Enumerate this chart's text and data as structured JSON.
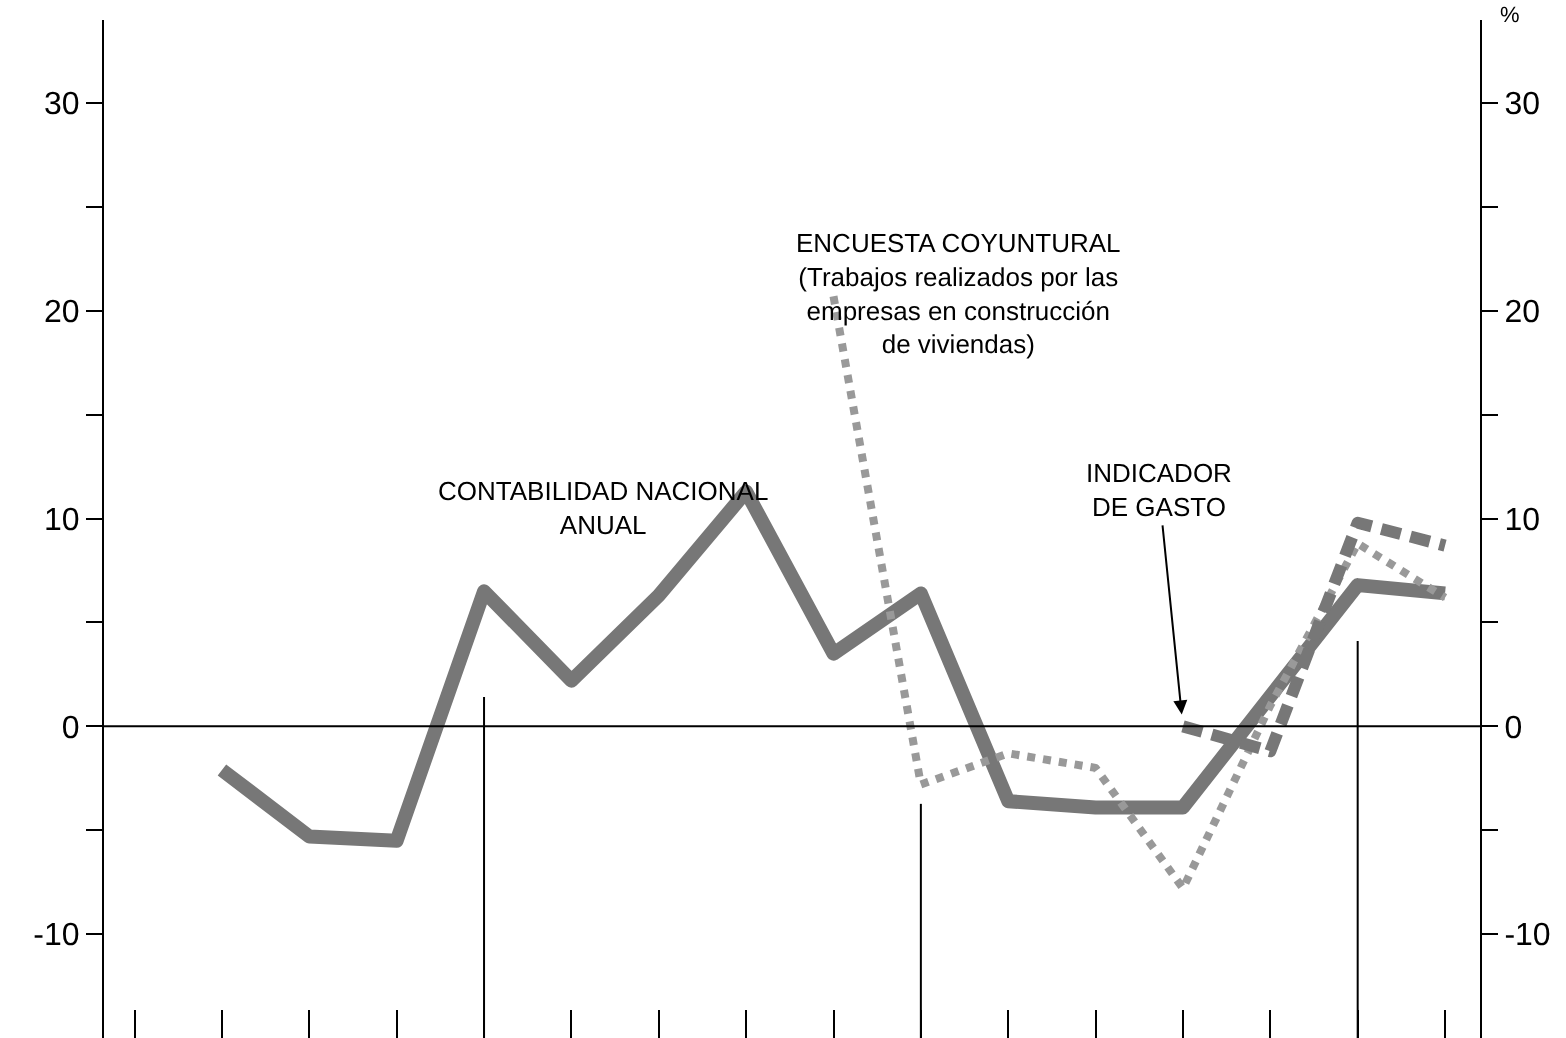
{
  "chart_data": {
    "type": "line",
    "categories": [
      null,
      null,
      null,
      null,
      null,
      null,
      null,
      null,
      null,
      null,
      null,
      null,
      null,
      null,
      null,
      null
    ],
    "ylim": [
      -15,
      34
    ],
    "yticks": [
      -10,
      {
        "value": -5,
        "label": null
      },
      0,
      {
        "value": 5,
        "label": null
      },
      10,
      {
        "value": 15,
        "label": null
      },
      20,
      {
        "value": 25,
        "label": null
      },
      30
    ],
    "y2lim": [
      -15,
      34
    ],
    "y2ticks": [
      -10,
      {
        "value": -5,
        "label": null
      },
      0,
      {
        "value": 5,
        "label": null
      },
      10,
      {
        "value": 15,
        "label": null
      },
      20,
      {
        "value": 25,
        "label": null
      },
      30
    ],
    "y2label": "%",
    "ref_lines": [
      {
        "axis": "y",
        "value": 0,
        "color": "#000000"
      }
    ],
    "series": [
      {
        "name": "CONTABILIDAD NACIONAL\nANUAL",
        "color": "#777777",
        "line_style": "solid",
        "values": [
          null,
          -2.1,
          -5.3,
          -5.5,
          6.5,
          2.2,
          6.3,
          11.3,
          3.5,
          6.4,
          -3.6,
          -3.9,
          -3.9,
          null,
          6.8,
          6.4
        ]
      },
      {
        "name": "ENCUESTA COYUNTURAL\n(Trabajos realizados por las\nempresas en construcción\nde viviendas)",
        "color": "#999999",
        "line_style": "dotted",
        "values": [
          null,
          null,
          null,
          null,
          null,
          null,
          null,
          null,
          20.7,
          -2.8,
          -1.3,
          -2,
          -7.8,
          1,
          8.8,
          6.2
        ]
      },
      {
        "name": "INDICADOR\nDE GASTO",
        "color": "#777777",
        "line_style": "dashed",
        "values": [
          null,
          null,
          null,
          null,
          null,
          null,
          null,
          null,
          null,
          null,
          null,
          null,
          0,
          -1.2,
          9.8,
          8.7
        ]
      }
    ]
  }
}
